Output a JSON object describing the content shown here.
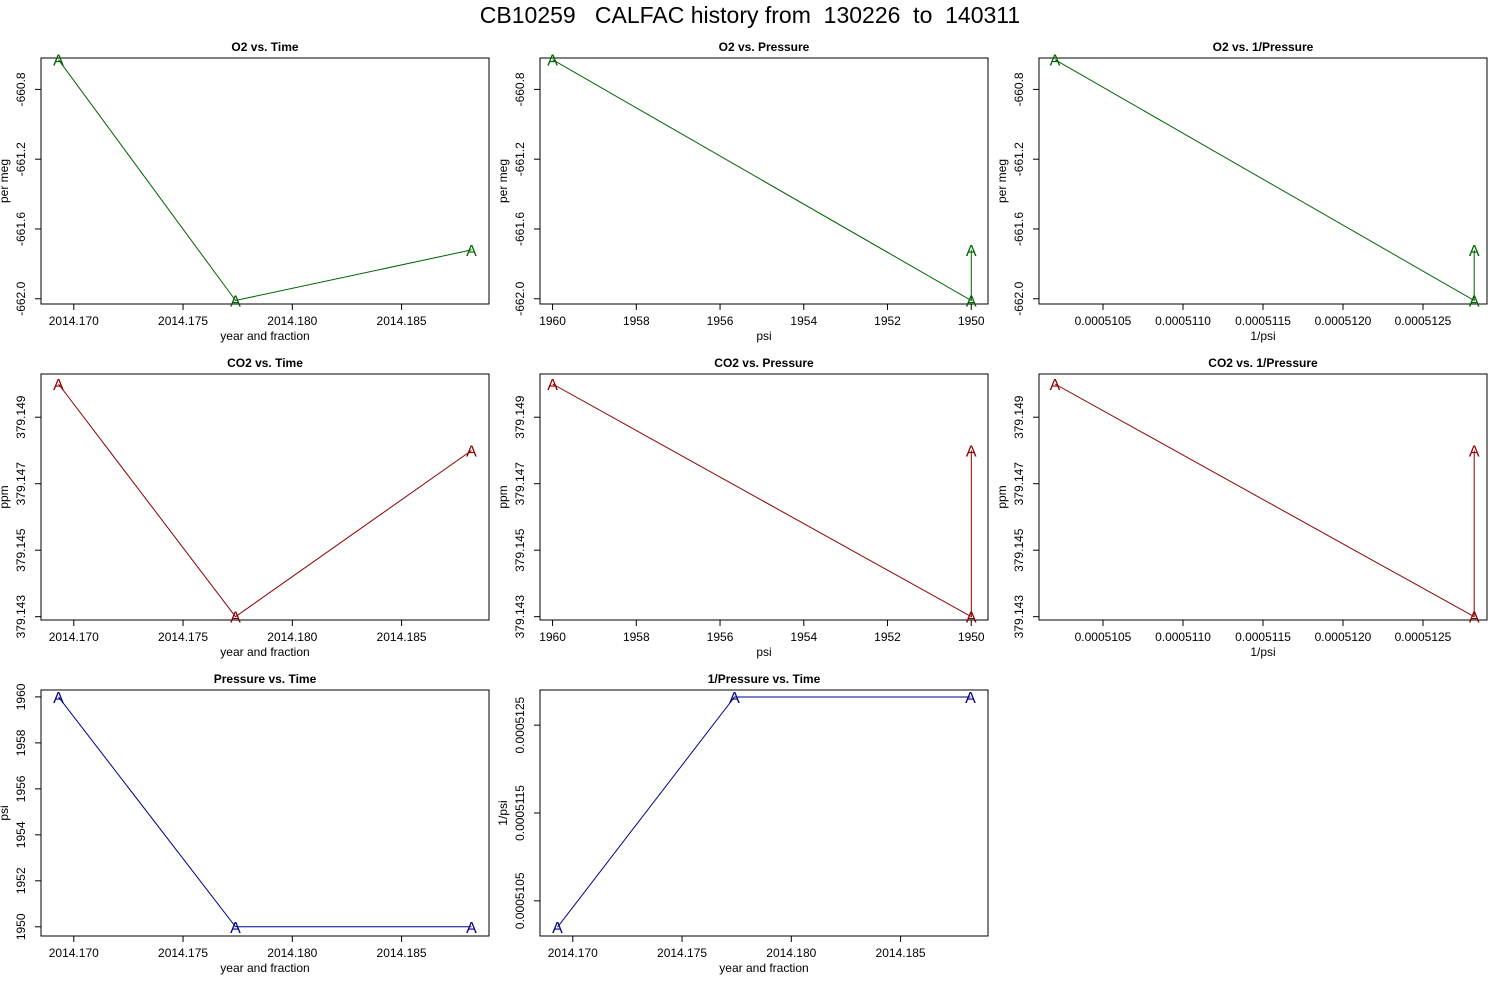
{
  "title": "CB10259   CALFAC history from  130226  to  140311",
  "colors": {
    "o2": "#006400",
    "co2": "#8b0000",
    "pressure": "#00008b"
  },
  "chart_data": [
    {
      "type": "line",
      "title": "O2 vs. Time",
      "xlabel": "year and fraction",
      "ylabel": "per meg",
      "color_key": "o2",
      "x_reverse": false,
      "xlim": [
        2014.1685,
        2014.189
      ],
      "ylim": [
        -662.03,
        -660.62
      ],
      "xticks": [
        2014.17,
        2014.175,
        2014.18,
        2014.185
      ],
      "xtick_labels": [
        "2014.170",
        "2014.175",
        "2014.180",
        "2014.185"
      ],
      "yticks": [
        -662.0,
        -661.6,
        -661.2,
        -660.8
      ],
      "ytick_labels": [
        "-662.0",
        "-661.6",
        "-661.2",
        "-660.8"
      ],
      "marker": "A",
      "x": [
        2014.1693,
        2014.1774,
        2014.1882
      ],
      "y": [
        -660.63,
        -662.01,
        -661.72
      ]
    },
    {
      "type": "line",
      "title": "O2 vs. Pressure",
      "xlabel": "psi",
      "ylabel": "per meg",
      "color_key": "o2",
      "x_reverse": true,
      "xlim": [
        1960.3,
        1949.6
      ],
      "ylim": [
        -662.03,
        -660.62
      ],
      "xticks": [
        1960,
        1958,
        1956,
        1954,
        1952,
        1950
      ],
      "xtick_labels": [
        "1960",
        "1958",
        "1956",
        "1954",
        "1952",
        "1950"
      ],
      "yticks": [
        -662.0,
        -661.6,
        -661.2,
        -660.8
      ],
      "ytick_labels": [
        "-662.0",
        "-661.6",
        "-661.2",
        "-660.8"
      ],
      "marker": "A",
      "x": [
        1960,
        1950,
        1950
      ],
      "y": [
        -660.63,
        -662.01,
        -661.72
      ]
    },
    {
      "type": "line",
      "title": "O2 vs. 1/Pressure",
      "xlabel": "1/psi",
      "ylabel": "per meg",
      "color_key": "o2",
      "x_reverse": false,
      "xlim": [
        0.0005101,
        0.0005129
      ],
      "ylim": [
        -662.03,
        -660.62
      ],
      "xticks": [
        0.0005105,
        0.000511,
        0.0005115,
        0.000512,
        0.0005125
      ],
      "xtick_labels": [
        "0.0005105",
        "0.0005110",
        "0.0005115",
        "0.0005120",
        "0.0005125"
      ],
      "yticks": [
        -662.0,
        -661.6,
        -661.2,
        -660.8
      ],
      "ytick_labels": [
        "-662.0",
        "-661.6",
        "-661.2",
        "-660.8"
      ],
      "marker": "A",
      "x": [
        0.0005102,
        0.00051282,
        0.00051282
      ],
      "y": [
        -660.63,
        -662.01,
        -661.72
      ]
    },
    {
      "type": "line",
      "title": "CO2 vs. Time",
      "xlabel": "year and fraction",
      "ylabel": "ppm",
      "color_key": "co2",
      "x_reverse": false,
      "xlim": [
        2014.1685,
        2014.189
      ],
      "ylim": [
        379.1429,
        379.1503
      ],
      "xticks": [
        2014.17,
        2014.175,
        2014.18,
        2014.185
      ],
      "xtick_labels": [
        "2014.170",
        "2014.175",
        "2014.180",
        "2014.185"
      ],
      "yticks": [
        379.143,
        379.145,
        379.147,
        379.149
      ],
      "ytick_labels": [
        "379.143",
        "379.145",
        "379.147",
        "379.149"
      ],
      "marker": "A",
      "x": [
        2014.1693,
        2014.1774,
        2014.1882
      ],
      "y": [
        379.15,
        379.143,
        379.148
      ]
    },
    {
      "type": "line",
      "title": "CO2 vs. Pressure",
      "xlabel": "psi",
      "ylabel": "ppm",
      "color_key": "co2",
      "x_reverse": true,
      "xlim": [
        1960.3,
        1949.6
      ],
      "ylim": [
        379.1429,
        379.1503
      ],
      "xticks": [
        1960,
        1958,
        1956,
        1954,
        1952,
        1950
      ],
      "xtick_labels": [
        "1960",
        "1958",
        "1956",
        "1954",
        "1952",
        "1950"
      ],
      "yticks": [
        379.143,
        379.145,
        379.147,
        379.149
      ],
      "ytick_labels": [
        "379.143",
        "379.145",
        "379.147",
        "379.149"
      ],
      "marker": "A",
      "x": [
        1960,
        1950,
        1950
      ],
      "y": [
        379.15,
        379.143,
        379.148
      ]
    },
    {
      "type": "line",
      "title": "CO2 vs. 1/Pressure",
      "xlabel": "1/psi",
      "ylabel": "ppm",
      "color_key": "co2",
      "x_reverse": false,
      "xlim": [
        0.0005101,
        0.0005129
      ],
      "ylim": [
        379.1429,
        379.1503
      ],
      "xticks": [
        0.0005105,
        0.000511,
        0.0005115,
        0.000512,
        0.0005125
      ],
      "xtick_labels": [
        "0.0005105",
        "0.0005110",
        "0.0005115",
        "0.0005120",
        "0.0005125"
      ],
      "yticks": [
        379.143,
        379.145,
        379.147,
        379.149
      ],
      "ytick_labels": [
        "379.143",
        "379.145",
        "379.147",
        "379.149"
      ],
      "marker": "A",
      "x": [
        0.0005102,
        0.00051282,
        0.00051282
      ],
      "y": [
        379.15,
        379.143,
        379.148
      ]
    },
    {
      "type": "line",
      "title": "Pressure vs. Time",
      "xlabel": "year and fraction",
      "ylabel": "psi",
      "color_key": "pressure",
      "x_reverse": false,
      "xlim": [
        2014.1685,
        2014.189
      ],
      "ylim": [
        1949.6,
        1960.3
      ],
      "xticks": [
        2014.17,
        2014.175,
        2014.18,
        2014.185
      ],
      "xtick_labels": [
        "2014.170",
        "2014.175",
        "2014.180",
        "2014.185"
      ],
      "yticks": [
        1950,
        1952,
        1954,
        1956,
        1958,
        1960
      ],
      "ytick_labels": [
        "1950",
        "1952",
        "1954",
        "1956",
        "1958",
        "1960"
      ],
      "marker": "A",
      "x": [
        2014.1693,
        2014.1774,
        2014.1882
      ],
      "y": [
        1960,
        1950,
        1950
      ]
    },
    {
      "type": "line",
      "title": "1/Pressure vs. Time",
      "xlabel": "year and fraction",
      "ylabel": "1/psi",
      "color_key": "pressure",
      "x_reverse": false,
      "xlim": [
        2014.1685,
        2014.189
      ],
      "ylim": [
        0.0005101,
        0.0005129
      ],
      "xticks": [
        2014.17,
        2014.175,
        2014.18,
        2014.185
      ],
      "xtick_labels": [
        "2014.170",
        "2014.175",
        "2014.180",
        "2014.185"
      ],
      "yticks": [
        0.0005105,
        0.0005115,
        0.0005125
      ],
      "ytick_labels": [
        "0.0005105",
        "0.0005115",
        "0.0005125"
      ],
      "marker": "A",
      "x": [
        2014.1693,
        2014.1774,
        2014.1882
      ],
      "y": [
        0.0005102,
        0.00051282,
        0.00051282
      ]
    }
  ]
}
